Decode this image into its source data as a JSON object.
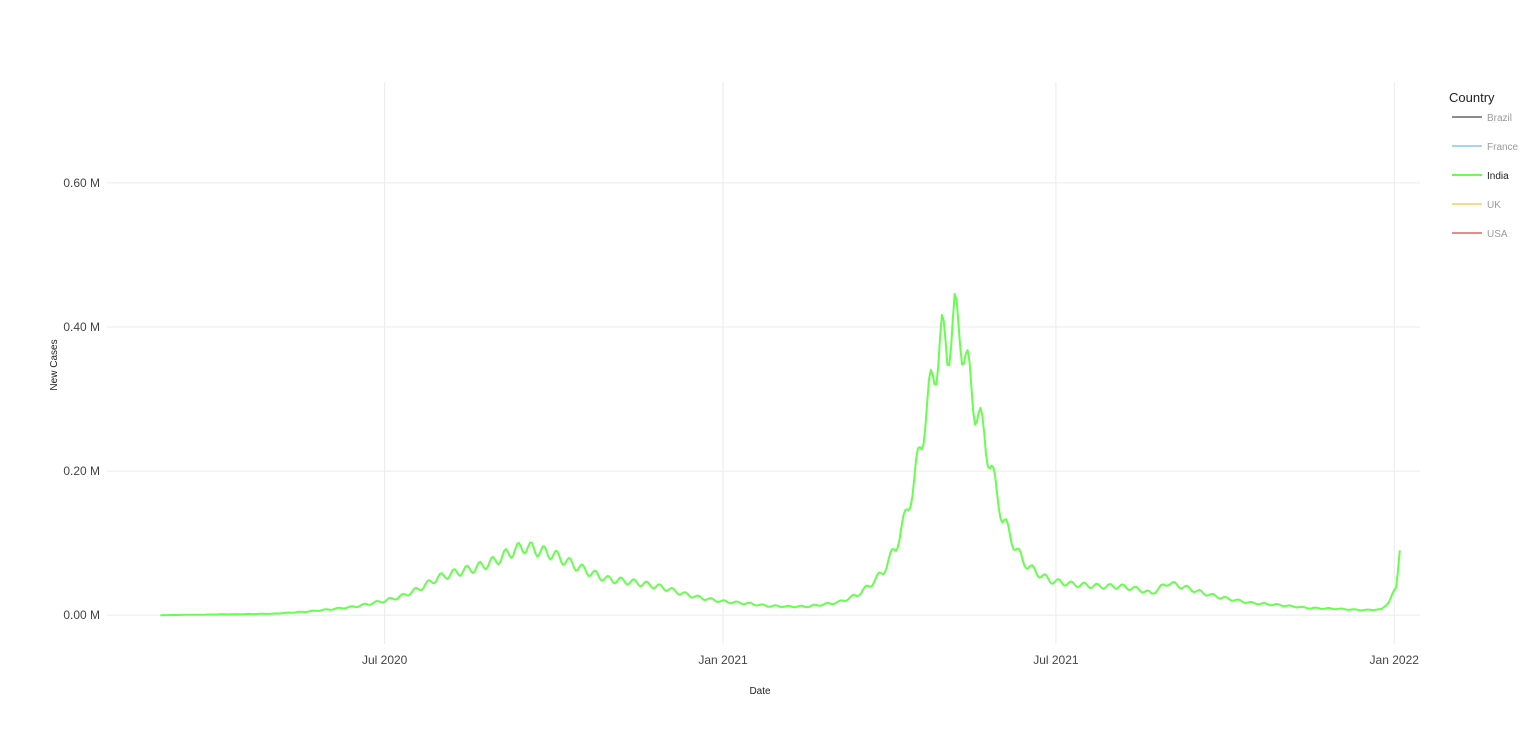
{
  "chart_data": {
    "type": "line",
    "title": "",
    "xlabel": "Date",
    "ylabel": "New Cases",
    "xlim": [
      "2020-02-01",
      "2022-01-15"
    ],
    "ylim": [
      -0.04,
      0.74
    ],
    "x_ticks": [
      {
        "date": "2020-07-01",
        "label": "Jul 2020"
      },
      {
        "date": "2021-01-01",
        "label": "Jan 2021"
      },
      {
        "date": "2021-07-01",
        "label": "Jul 2021"
      },
      {
        "date": "2022-01-01",
        "label": "Jan 2022"
      }
    ],
    "y_ticks": [
      {
        "value": 0.0,
        "label": "0.00 M"
      },
      {
        "value": 0.2,
        "label": "0.20 M"
      },
      {
        "value": 0.4,
        "label": "0.40 M"
      },
      {
        "value": 0.6,
        "label": "0.60 M"
      }
    ],
    "grid": true,
    "legend": {
      "title": "Country",
      "placement": "right",
      "entries": [
        {
          "name": "Brazil",
          "color": "#8c8c8c",
          "text_color": "#9a9a9a"
        },
        {
          "name": "France",
          "color": "#a6d4f5",
          "text_color": "#9a9a9a"
        },
        {
          "name": "India",
          "color": "#66ff4d",
          "text_color": "#222222"
        },
        {
          "name": "UK",
          "color": "#fad98f",
          "text_color": "#9a9a9a"
        },
        {
          "name": "USA",
          "color": "#e88a8a",
          "text_color": "#9a9a9a"
        }
      ]
    },
    "series": [
      {
        "name": "India",
        "color": "#66ff4d",
        "points": [
          [
            "2020-03-01",
            0.0
          ],
          [
            "2020-04-01",
            0.001
          ],
          [
            "2020-05-01",
            0.002
          ],
          [
            "2020-05-20",
            0.005
          ],
          [
            "2020-06-01",
            0.008
          ],
          [
            "2020-06-15",
            0.012
          ],
          [
            "2020-07-01",
            0.02
          ],
          [
            "2020-07-10",
            0.026
          ],
          [
            "2020-07-20",
            0.037
          ],
          [
            "2020-07-30",
            0.052
          ],
          [
            "2020-08-10",
            0.06
          ],
          [
            "2020-08-20",
            0.066
          ],
          [
            "2020-08-30",
            0.075
          ],
          [
            "2020-09-07",
            0.087
          ],
          [
            "2020-09-15",
            0.095
          ],
          [
            "2020-09-22",
            0.09
          ],
          [
            "2020-09-30",
            0.085
          ],
          [
            "2020-10-10",
            0.072
          ],
          [
            "2020-10-20",
            0.06
          ],
          [
            "2020-10-30",
            0.05
          ],
          [
            "2020-11-10",
            0.047
          ],
          [
            "2020-11-20",
            0.043
          ],
          [
            "2020-11-30",
            0.038
          ],
          [
            "2020-12-10",
            0.03
          ],
          [
            "2020-12-20",
            0.024
          ],
          [
            "2021-01-01",
            0.019
          ],
          [
            "2021-01-15",
            0.016
          ],
          [
            "2021-01-25",
            0.013
          ],
          [
            "2021-02-05",
            0.012
          ],
          [
            "2021-02-15",
            0.012
          ],
          [
            "2021-02-25",
            0.015
          ],
          [
            "2021-03-05",
            0.018
          ],
          [
            "2021-03-15",
            0.028
          ],
          [
            "2021-03-22",
            0.042
          ],
          [
            "2021-03-29",
            0.06
          ],
          [
            "2021-04-05",
            0.095
          ],
          [
            "2021-04-10",
            0.135
          ],
          [
            "2021-04-15",
            0.185
          ],
          [
            "2021-04-20",
            0.26
          ],
          [
            "2021-04-25",
            0.33
          ],
          [
            "2021-04-30",
            0.385
          ],
          [
            "2021-05-03",
            0.37
          ],
          [
            "2021-05-07",
            0.412
          ],
          [
            "2021-05-10",
            0.395
          ],
          [
            "2021-05-14",
            0.34
          ],
          [
            "2021-05-18",
            0.29
          ],
          [
            "2021-05-23",
            0.25
          ],
          [
            "2021-05-28",
            0.19
          ],
          [
            "2021-06-02",
            0.135
          ],
          [
            "2021-06-07",
            0.105
          ],
          [
            "2021-06-13",
            0.075
          ],
          [
            "2021-06-20",
            0.06
          ],
          [
            "2021-06-28",
            0.048
          ],
          [
            "2021-07-10",
            0.043
          ],
          [
            "2021-07-25",
            0.04
          ],
          [
            "2021-08-05",
            0.04
          ],
          [
            "2021-08-15",
            0.036
          ],
          [
            "2021-08-22",
            0.03
          ],
          [
            "2021-08-31",
            0.045
          ],
          [
            "2021-09-10",
            0.038
          ],
          [
            "2021-09-20",
            0.03
          ],
          [
            "2021-09-30",
            0.024
          ],
          [
            "2021-10-15",
            0.017
          ],
          [
            "2021-10-31",
            0.014
          ],
          [
            "2021-11-15",
            0.01
          ],
          [
            "2021-11-30",
            0.009
          ],
          [
            "2021-12-15",
            0.007
          ],
          [
            "2021-12-25",
            0.008
          ],
          [
            "2021-12-29",
            0.018
          ],
          [
            "2022-01-02",
            0.038
          ],
          [
            "2022-01-04",
            0.09
          ]
        ]
      }
    ]
  }
}
